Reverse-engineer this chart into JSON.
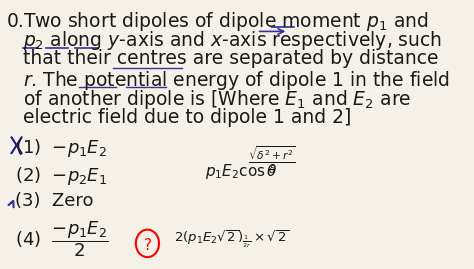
{
  "bg_color": "#f5f0e8",
  "question_number": "0.",
  "question_text_lines": [
    "Two short dipoles of dipole moment $p_1$ and",
    "$p_2$ along $y$-axis and $x$-axis respectively, such",
    "that their centres are separated by distance",
    "$r$. The potential energy of dipole 1 in the field",
    "of another dipole is [Where $E_1$ and $E_2$ are",
    "electric field due to dipole 1 and 2]"
  ],
  "options": [
    "(1)  $-p_1 E_2$",
    "(2)  $-p_2 E_1$",
    "(3)  Zero",
    "(4)  $\\dfrac{-p_1 E_2}{2}$"
  ],
  "handwritten_right_top": "$\\dfrac{\\sqrt{\\delta^2 + r^2}}{\\delta}$",
  "handwritten_right_mid": "$p_1 E_2 \\cos\\theta$",
  "handwritten_right_bot": "$2(p_1 E_2 \\sqrt{2})_{\\frac{1}{2r}} \\times \\sqrt{2}$",
  "strike_color": "#1a1a8c",
  "text_color": "#1a1a1a",
  "option_font_size": 13,
  "question_font_size": 13.5
}
